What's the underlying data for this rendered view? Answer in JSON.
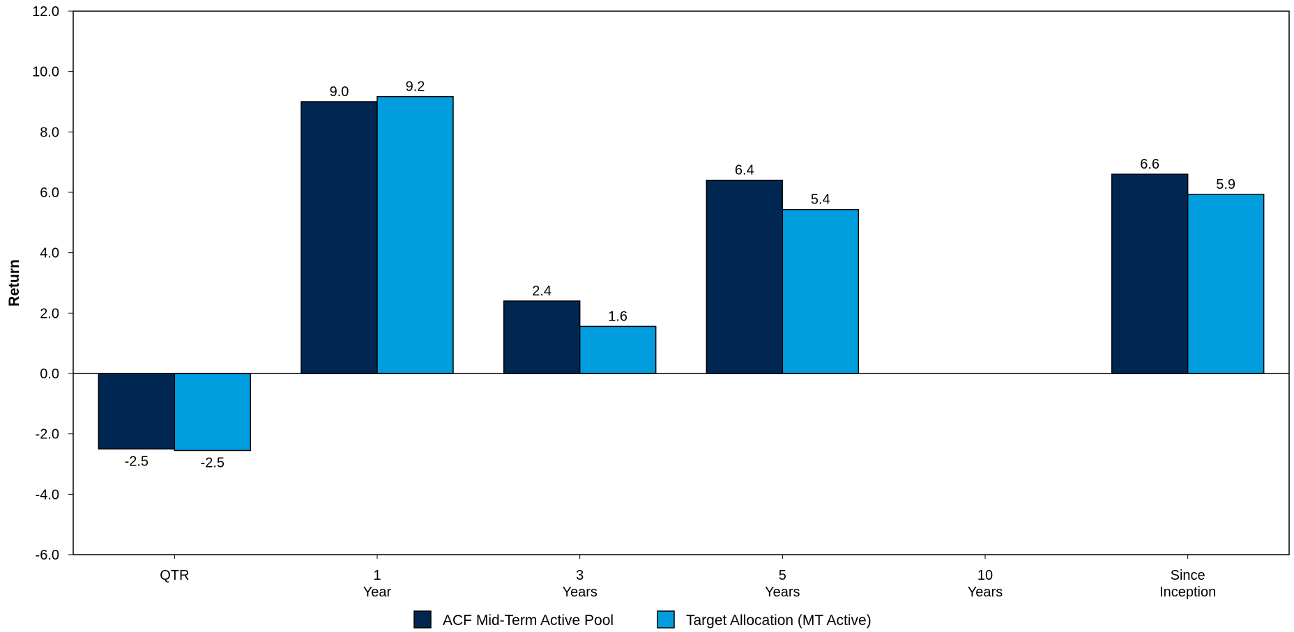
{
  "chart_data": {
    "type": "bar",
    "title": "",
    "xlabel": "",
    "ylabel": "Return",
    "ylim": [
      -6.0,
      12.0
    ],
    "ytick_step": 2.0,
    "grid": false,
    "legend_position": "bottom",
    "categories": [
      [
        "QTR"
      ],
      [
        "1",
        "Year"
      ],
      [
        "3",
        "Years"
      ],
      [
        "5",
        "Years"
      ],
      [
        "10",
        "Years"
      ],
      [
        "Since",
        "Inception"
      ]
    ],
    "series": [
      {
        "name": "ACF Mid-Term Active Pool",
        "color": "#002752",
        "values": [
          -2.5,
          9.0,
          2.4,
          6.4,
          null,
          6.6
        ],
        "labels": [
          "-2.5",
          "9.0",
          "2.4",
          "6.4",
          null,
          "6.6"
        ]
      },
      {
        "name": "Target Allocation (MT Active)",
        "color": "#009ddf",
        "values": [
          -2.55,
          9.17,
          1.56,
          5.43,
          null,
          5.93
        ],
        "labels": [
          "-2.5",
          "9.2",
          "1.6",
          "5.4",
          null,
          "5.9"
        ]
      }
    ]
  }
}
